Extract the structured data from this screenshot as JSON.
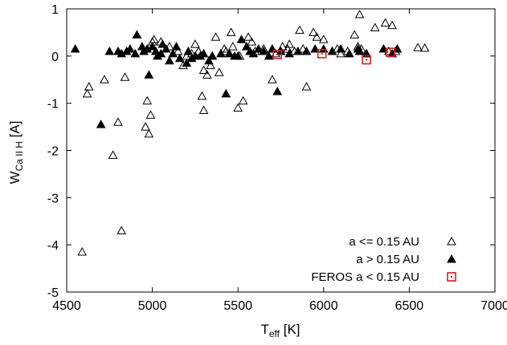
{
  "chart_data": {
    "type": "scatter",
    "xlim": [
      4500,
      7000
    ],
    "ylim": [
      -5,
      1
    ],
    "xticks": [
      4500,
      5000,
      5500,
      6000,
      6500,
      7000
    ],
    "yticks": [
      1,
      0,
      -1,
      -2,
      -3,
      -4,
      -5
    ],
    "xtick_labels": [
      "4500",
      "5000",
      "5500",
      "6000",
      "6500",
      "7000"
    ],
    "ytick_labels": [
      "1",
      "0",
      "-1",
      "-2",
      "-3",
      "-4",
      "-5"
    ],
    "xlabel": {
      "main": "T",
      "sub": "eff",
      "unit": " [K]"
    },
    "ylabel": {
      "main": "W",
      "sub": "Ca II H",
      "unit": " [A]"
    },
    "grid": false,
    "legend_placement": "bottom-right",
    "series": [
      {
        "name": "a <= 0.15 AU",
        "marker": "open-triangle",
        "color": "#000000",
        "points": [
          [
            4590,
            -4.15
          ],
          [
            4620,
            -0.8
          ],
          [
            4630,
            -0.65
          ],
          [
            4720,
            -0.5
          ],
          [
            4770,
            -2.1
          ],
          [
            4800,
            -1.4
          ],
          [
            4820,
            -3.7
          ],
          [
            4840,
            -0.45
          ],
          [
            4960,
            -1.5
          ],
          [
            4970,
            -0.95
          ],
          [
            4980,
            -1.65
          ],
          [
            4990,
            -1.25
          ],
          [
            5000,
            0.3
          ],
          [
            5010,
            0.35
          ],
          [
            5050,
            0.3
          ],
          [
            5100,
            0.2
          ],
          [
            5150,
            0.1
          ],
          [
            5180,
            -0.2
          ],
          [
            5200,
            0.0
          ],
          [
            5230,
            0.05
          ],
          [
            5250,
            0.25
          ],
          [
            5270,
            0.1
          ],
          [
            5290,
            -0.85
          ],
          [
            5300,
            -1.15
          ],
          [
            5300,
            -0.3
          ],
          [
            5320,
            -0.4
          ],
          [
            5340,
            -0.2
          ],
          [
            5350,
            0.0
          ],
          [
            5370,
            0.4
          ],
          [
            5390,
            -0.35
          ],
          [
            5420,
            0.15
          ],
          [
            5430,
            0.1
          ],
          [
            5460,
            0.5
          ],
          [
            5470,
            0.2
          ],
          [
            5500,
            -1.1
          ],
          [
            5510,
            0.0
          ],
          [
            5530,
            -0.95
          ],
          [
            5560,
            0.4
          ],
          [
            5580,
            0.3
          ],
          [
            5600,
            0.1
          ],
          [
            5650,
            0.15
          ],
          [
            5700,
            -0.5
          ],
          [
            5720,
            0.05
          ],
          [
            5760,
            0.2
          ],
          [
            5790,
            0.15
          ],
          [
            5800,
            0.25
          ],
          [
            5830,
            0.1
          ],
          [
            5860,
            0.55
          ],
          [
            5880,
            0.15
          ],
          [
            5900,
            -0.65
          ],
          [
            5940,
            0.5
          ],
          [
            5960,
            0.4
          ],
          [
            6000,
            0.35
          ],
          [
            6050,
            0.1
          ],
          [
            6080,
            0.15
          ],
          [
            6100,
            0.05
          ],
          [
            6140,
            0.1
          ],
          [
            6180,
            0.45
          ],
          [
            6200,
            0.2
          ],
          [
            6210,
            0.88
          ],
          [
            6220,
            0.15
          ],
          [
            6250,
            0.05
          ],
          [
            6300,
            0.6
          ],
          [
            6350,
            0.15
          ],
          [
            6360,
            0.7
          ],
          [
            6380,
            0.1
          ],
          [
            6400,
            0.65
          ],
          [
            6420,
            0.1
          ],
          [
            6550,
            0.18
          ],
          [
            6590,
            0.17
          ]
        ]
      },
      {
        "name": "a > 0.15 AU",
        "marker": "filled-triangle",
        "color": "#000000",
        "points": [
          [
            4550,
            0.15
          ],
          [
            4700,
            -1.45
          ],
          [
            4750,
            0.1
          ],
          [
            4800,
            0.1
          ],
          [
            4820,
            0.05
          ],
          [
            4850,
            0.1
          ],
          [
            4870,
            0.15
          ],
          [
            4900,
            0.05
          ],
          [
            4910,
            0.45
          ],
          [
            4940,
            0.2
          ],
          [
            4950,
            0.1
          ],
          [
            4970,
            0.15
          ],
          [
            4980,
            -0.4
          ],
          [
            5000,
            0.2
          ],
          [
            5020,
            0.1
          ],
          [
            5030,
            0.0
          ],
          [
            5050,
            0.05
          ],
          [
            5060,
            0.25
          ],
          [
            5080,
            0.15
          ],
          [
            5100,
            -0.1
          ],
          [
            5120,
            0.05
          ],
          [
            5140,
            0.2
          ],
          [
            5160,
            -0.05
          ],
          [
            5200,
            -0.15
          ],
          [
            5210,
            0.1
          ],
          [
            5230,
            -0.05
          ],
          [
            5250,
            0.0
          ],
          [
            5280,
            0.0
          ],
          [
            5300,
            0.05
          ],
          [
            5330,
            -0.1
          ],
          [
            5350,
            0.0
          ],
          [
            5400,
            0.05
          ],
          [
            5430,
            -0.8
          ],
          [
            5450,
            0.05
          ],
          [
            5480,
            0.0
          ],
          [
            5500,
            0.0
          ],
          [
            5520,
            0.35
          ],
          [
            5550,
            0.2
          ],
          [
            5570,
            0.1
          ],
          [
            5590,
            0.05
          ],
          [
            5620,
            0.15
          ],
          [
            5650,
            0.1
          ],
          [
            5680,
            0.0
          ],
          [
            5700,
            0.15
          ],
          [
            5730,
            -0.75
          ],
          [
            5750,
            0.1
          ],
          [
            5800,
            0.05
          ],
          [
            5850,
            0.1
          ],
          [
            5900,
            0.1
          ],
          [
            5950,
            0.15
          ],
          [
            6000,
            0.15
          ],
          [
            6050,
            0.1
          ],
          [
            6100,
            0.15
          ],
          [
            6150,
            0.05
          ],
          [
            6200,
            0.15
          ],
          [
            6210,
            0.1
          ],
          [
            6250,
            0.05
          ],
          [
            6350,
            0.15
          ],
          [
            6400,
            0.05
          ],
          [
            6430,
            0.15
          ]
        ]
      },
      {
        "name": "FEROS a < 0.15 AU",
        "marker": "open-square-dot",
        "color": "#d42020",
        "points": [
          [
            5730,
            0.03
          ],
          [
            5990,
            0.05
          ],
          [
            6250,
            -0.08
          ],
          [
            6390,
            0.08
          ]
        ]
      }
    ]
  }
}
